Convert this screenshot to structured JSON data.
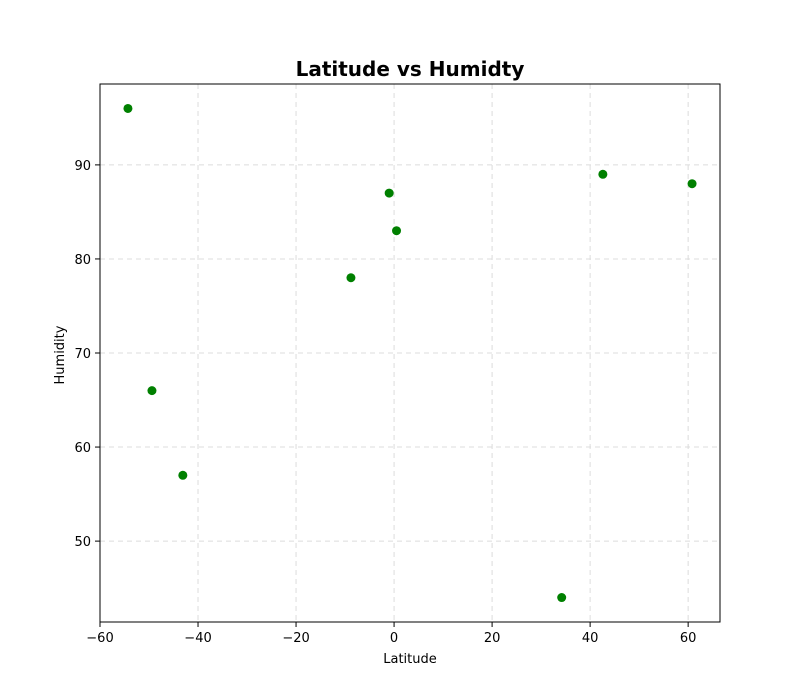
{
  "chart_data": {
    "type": "scatter",
    "title": "Latitude vs Humidty",
    "xlabel": "Latitude",
    "ylabel": "Humidity",
    "xlim": [
      -60,
      66.5
    ],
    "ylim": [
      41.4,
      98.6
    ],
    "xticks": [
      -60,
      -40,
      -20,
      0,
      20,
      40,
      60
    ],
    "xtick_labels": [
      "−60",
      "−40",
      "−20",
      "0",
      "20",
      "40",
      "60"
    ],
    "yticks": [
      50,
      60,
      70,
      80,
      90
    ],
    "ytick_labels": [
      "50",
      "60",
      "70",
      "80",
      "90"
    ],
    "grid": true,
    "marker_color": "#008000",
    "points": [
      {
        "x": -54.3,
        "y": 96
      },
      {
        "x": -49.4,
        "y": 66
      },
      {
        "x": -43.1,
        "y": 57
      },
      {
        "x": -8.8,
        "y": 78
      },
      {
        "x": -1.0,
        "y": 87
      },
      {
        "x": 0.5,
        "y": 83
      },
      {
        "x": 34.2,
        "y": 44
      },
      {
        "x": 42.6,
        "y": 89
      },
      {
        "x": 60.8,
        "y": 88
      }
    ]
  }
}
